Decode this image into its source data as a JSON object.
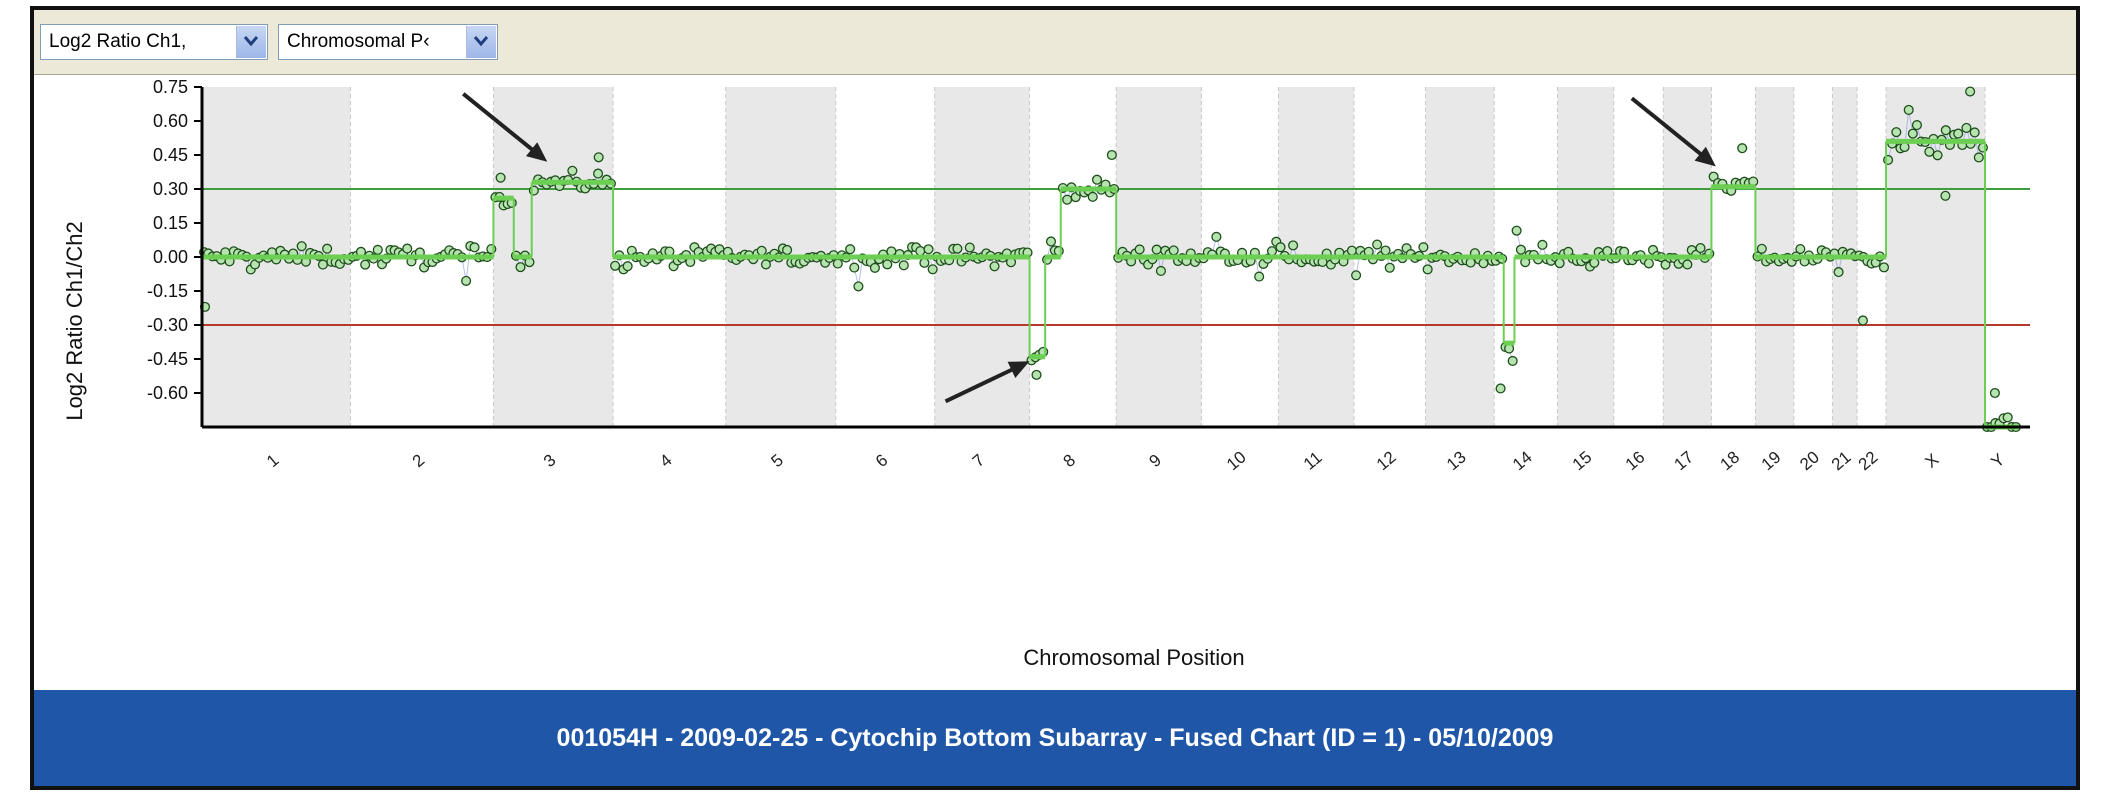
{
  "toolbar": {
    "series_select": "Log2 Ratio Ch1,",
    "axis_select": "Chromosomal P‹"
  },
  "footer": {
    "caption": "001054H - 2009-02-25 - Cytochip Bottom Subarray - Fused Chart (ID = 1) - 05/10/2009"
  },
  "colors": {
    "points": "#3e9b3a",
    "segments": "#6ccf53",
    "gain_line": "#3f9d3f",
    "loss_line": "#b53a2b",
    "shade": "#e8e8e8",
    "footer": "#1f56a7"
  },
  "chart_data": {
    "type": "scatter",
    "xlabel": "Chromosomal Position",
    "ylabel": "Log2 Ratio Ch1/Ch2",
    "ylim": [
      -0.75,
      0.75
    ],
    "yticks": [
      "0.75",
      "0.60",
      "0.45",
      "0.30",
      "0.15",
      "0.00",
      "-0.15",
      "-0.30",
      "-0.45",
      "-0.60"
    ],
    "thresholds": {
      "gain": 0.3,
      "loss": -0.3
    },
    "chromosomes": [
      {
        "label": "1",
        "size": 108
      },
      {
        "label": "2",
        "size": 104
      },
      {
        "label": "3",
        "size": 87
      },
      {
        "label": "4",
        "size": 82
      },
      {
        "label": "5",
        "size": 80
      },
      {
        "label": "6",
        "size": 72
      },
      {
        "label": "7",
        "size": 69
      },
      {
        "label": "8",
        "size": 63
      },
      {
        "label": "9",
        "size": 62
      },
      {
        "label": "10",
        "size": 56
      },
      {
        "label": "11",
        "size": 55
      },
      {
        "label": "12",
        "size": 52
      },
      {
        "label": "13",
        "size": 50
      },
      {
        "label": "14",
        "size": 46
      },
      {
        "label": "15",
        "size": 41
      },
      {
        "label": "16",
        "size": 36
      },
      {
        "label": "17",
        "size": 35
      },
      {
        "label": "18",
        "size": 32
      },
      {
        "label": "19",
        "size": 28
      },
      {
        "label": "20",
        "size": 28
      },
      {
        "label": "21",
        "size": 18
      },
      {
        "label": "22",
        "size": 21
      },
      {
        "label": "X",
        "size": 72
      },
      {
        "label": "Y",
        "size": 24
      }
    ],
    "segments": [
      {
        "chr": 0,
        "from": 0.0,
        "to": 1.0,
        "value": 0.0
      },
      {
        "chr": 1,
        "from": 0.0,
        "to": 1.0,
        "value": 0.0
      },
      {
        "chr": 2,
        "from": 0.0,
        "to": 0.17,
        "value": 0.26
      },
      {
        "chr": 2,
        "from": 0.17,
        "to": 0.32,
        "value": 0.0
      },
      {
        "chr": 2,
        "from": 0.32,
        "to": 1.0,
        "value": 0.33
      },
      {
        "chr": 3,
        "from": 0.0,
        "to": 1.0,
        "value": 0.0
      },
      {
        "chr": 4,
        "from": 0.0,
        "to": 1.0,
        "value": 0.0
      },
      {
        "chr": 5,
        "from": 0.0,
        "to": 1.0,
        "value": 0.0
      },
      {
        "chr": 6,
        "from": 0.0,
        "to": 1.0,
        "value": 0.0
      },
      {
        "chr": 7,
        "from": 0.0,
        "to": 0.18,
        "value": -0.44
      },
      {
        "chr": 7,
        "from": 0.18,
        "to": 0.36,
        "value": 0.0
      },
      {
        "chr": 7,
        "from": 0.36,
        "to": 1.0,
        "value": 0.3
      },
      {
        "chr": 8,
        "from": 0.0,
        "to": 1.0,
        "value": 0.0
      },
      {
        "chr": 9,
        "from": 0.0,
        "to": 1.0,
        "value": 0.0
      },
      {
        "chr": 10,
        "from": 0.0,
        "to": 1.0,
        "value": 0.0
      },
      {
        "chr": 11,
        "from": 0.0,
        "to": 1.0,
        "value": 0.0
      },
      {
        "chr": 12,
        "from": 0.0,
        "to": 1.0,
        "value": 0.0
      },
      {
        "chr": 13,
        "from": 0.0,
        "to": 0.15,
        "value": 0.0
      },
      {
        "chr": 13,
        "from": 0.15,
        "to": 0.32,
        "value": -0.38
      },
      {
        "chr": 13,
        "from": 0.32,
        "to": 1.0,
        "value": 0.0
      },
      {
        "chr": 14,
        "from": 0.0,
        "to": 1.0,
        "value": 0.0
      },
      {
        "chr": 15,
        "from": 0.0,
        "to": 1.0,
        "value": 0.0
      },
      {
        "chr": 16,
        "from": 0.0,
        "to": 1.0,
        "value": 0.0
      },
      {
        "chr": 17,
        "from": 0.0,
        "to": 1.0,
        "value": 0.31
      },
      {
        "chr": 18,
        "from": 0.0,
        "to": 1.0,
        "value": 0.0
      },
      {
        "chr": 19,
        "from": 0.0,
        "to": 1.0,
        "value": 0.0
      },
      {
        "chr": 20,
        "from": 0.0,
        "to": 1.0,
        "value": 0.0
      },
      {
        "chr": 21,
        "from": 0.0,
        "to": 1.0,
        "value": 0.0
      },
      {
        "chr": 22,
        "from": 0.0,
        "to": 1.0,
        "value": 0.51
      },
      {
        "chr": 23,
        "from": 0.0,
        "to": 1.0,
        "value": -0.82
      }
    ],
    "extras": [
      {
        "chr": 0,
        "pos": 0.02,
        "value": -0.22
      },
      {
        "chr": 2,
        "pos": 0.06,
        "value": 0.35
      },
      {
        "chr": 2,
        "pos": 0.88,
        "value": 0.44
      },
      {
        "chr": 7,
        "pos": 0.08,
        "value": -0.52
      },
      {
        "chr": 7,
        "pos": 0.95,
        "value": 0.45
      },
      {
        "chr": 13,
        "pos": 0.1,
        "value": -0.58
      },
      {
        "chr": 17,
        "pos": 0.7,
        "value": 0.48
      },
      {
        "chr": 21,
        "pos": 0.2,
        "value": -0.28
      },
      {
        "chr": 22,
        "pos": 0.85,
        "value": 0.73
      },
      {
        "chr": 22,
        "pos": 0.6,
        "value": 0.27
      },
      {
        "chr": 23,
        "pos": 0.3,
        "value": -0.6
      }
    ],
    "annotations": [
      {
        "type": "arrow",
        "target_chr": 2,
        "target_pos": 0.45,
        "target_value": 0.42,
        "direction": "from-upper-left"
      },
      {
        "type": "arrow",
        "target_chr": 7,
        "target_pos": 0.0,
        "target_value": -0.46,
        "direction": "from-lower-left"
      },
      {
        "type": "arrow",
        "target_chr": 17,
        "target_pos": 0.1,
        "target_value": 0.4,
        "direction": "from-upper-left"
      }
    ]
  }
}
